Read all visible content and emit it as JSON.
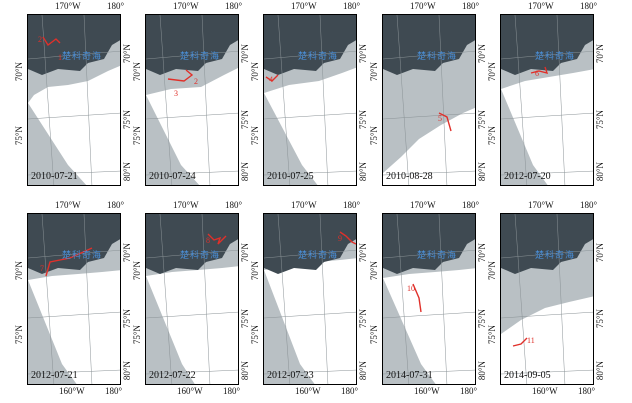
{
  "labels": {
    "lon_170w": "170°W",
    "lon_180": "180°",
    "lon_160w": "160°W",
    "lat_70n": "70°N",
    "lat_75n": "75°N",
    "lat_80n": "80°N",
    "sea_name": "楚科奇海"
  },
  "colors": {
    "land": "#3f4a52",
    "ice_pack": "#ffffff",
    "open_water": "#b9c0c4",
    "track": "#e0302a",
    "sea_label": "#4a8fd8"
  },
  "panels": [
    {
      "date": "2010-07-21",
      "track_labels": [
        "2",
        "1"
      ]
    },
    {
      "date": "2010-07-24",
      "track_labels": [
        "2",
        "3"
      ]
    },
    {
      "date": "2010-07-25",
      "track_labels": [
        "4"
      ]
    },
    {
      "date": "2010-08-28",
      "track_labels": [
        "5"
      ]
    },
    {
      "date": "2012-07-20",
      "track_labels": [
        "6"
      ]
    },
    {
      "date": "2012-07-21",
      "track_labels": [
        "7"
      ]
    },
    {
      "date": "2012-07-22",
      "track_labels": [
        "8"
      ]
    },
    {
      "date": "2012-07-23",
      "track_labels": [
        "9"
      ]
    },
    {
      "date": "2014-07-31",
      "track_labels": [
        "10"
      ]
    },
    {
      "date": "2014-09-05",
      "track_labels": [
        "11"
      ]
    }
  ]
}
